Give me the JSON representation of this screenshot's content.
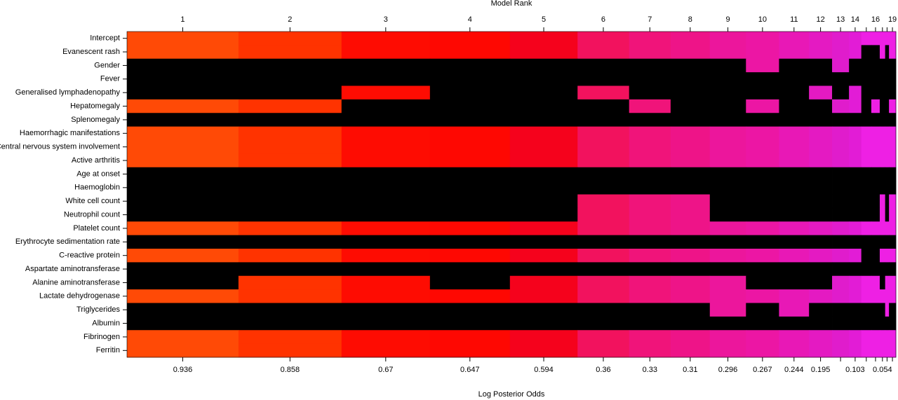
{
  "chart_data": {
    "type": "bma-image",
    "title": "Model Rank",
    "xlabel": "Log Posterior Odds",
    "model_ranks": [
      1,
      2,
      3,
      4,
      5,
      6,
      7,
      8,
      9,
      10,
      11,
      12,
      13,
      14,
      null,
      16,
      null,
      null,
      19
    ],
    "log_posterior_odds": [
      0.936,
      0.858,
      0.67,
      0.647,
      0.594,
      0.36,
      0.33,
      0.31,
      0.296,
      0.267,
      0.244,
      0.195,
      null,
      0.103,
      null,
      null,
      0.054,
      null,
      null
    ],
    "model_probs": [
      0.145,
      0.134,
      0.115,
      0.104,
      0.088,
      0.067,
      0.054,
      0.051,
      0.047,
      0.043,
      0.039,
      0.03,
      0.022,
      0.016,
      0.013,
      0.011,
      0.007,
      0.005,
      0.009
    ],
    "xlim": [
      0,
      1
    ],
    "model_colors": [
      "#ff4a06",
      "#ff3300",
      "#fe0c02",
      "#fe0802",
      "#f5021c",
      "#f2125e",
      "#f0147a",
      "#ee1488",
      "#ec169c",
      "#ec16a4",
      "#e818b6",
      "#e41ac2",
      "#e01ccc",
      "#e21cd6",
      "#ee20e4",
      "#ee20e4",
      "#ee20e4",
      "#ee20e4",
      "#ee20e4"
    ],
    "empty_color": "#000000",
    "variables": [
      "Intercept",
      "Evanescent rash",
      "Gender",
      "Fever",
      "Generalised lymphadenopathy",
      "Hepatomegaly",
      "Splenomegaly",
      "Haemorrhagic manifestations",
      "Central nervous system involvement",
      "Active arthritis",
      "Age at onset",
      "Haemoglobin",
      "White cell count",
      "Neutrophil count",
      "Platelet count",
      "Erythrocyte sedimentation rate",
      "C-reactive protein",
      "Aspartate aminotransferase",
      "Alanine aminotransferase",
      "Lactate dehydrogenase",
      "Triglycerides",
      "Albumin",
      "Fibrinogen",
      "Ferritin"
    ],
    "inclusion": [
      [
        1,
        1,
        1,
        1,
        1,
        1,
        1,
        1,
        1,
        1,
        1,
        1,
        1,
        1,
        1,
        1,
        1,
        1,
        1
      ],
      [
        1,
        1,
        1,
        1,
        1,
        1,
        1,
        1,
        1,
        1,
        1,
        1,
        1,
        1,
        0,
        0,
        1,
        0,
        1
      ],
      [
        0,
        0,
        0,
        0,
        0,
        0,
        0,
        0,
        0,
        1,
        0,
        0,
        1,
        0,
        0,
        0,
        0,
        0,
        0
      ],
      [
        0,
        0,
        0,
        0,
        0,
        0,
        0,
        0,
        0,
        0,
        0,
        0,
        0,
        0,
        0,
        0,
        0,
        0,
        0
      ],
      [
        0,
        0,
        1,
        0,
        0,
        1,
        0,
        0,
        0,
        0,
        0,
        1,
        0,
        1,
        0,
        0,
        0,
        0,
        0
      ],
      [
        1,
        1,
        0,
        0,
        0,
        0,
        1,
        0,
        0,
        1,
        0,
        0,
        1,
        1,
        0,
        1,
        0,
        0,
        1
      ],
      [
        0,
        0,
        0,
        0,
        0,
        0,
        0,
        0,
        0,
        0,
        0,
        0,
        0,
        0,
        0,
        0,
        0,
        0,
        0
      ],
      [
        1,
        1,
        1,
        1,
        1,
        1,
        1,
        1,
        1,
        1,
        1,
        1,
        1,
        1,
        1,
        1,
        1,
        1,
        1
      ],
      [
        1,
        1,
        1,
        1,
        1,
        1,
        1,
        1,
        1,
        1,
        1,
        1,
        1,
        1,
        1,
        1,
        1,
        1,
        1
      ],
      [
        1,
        1,
        1,
        1,
        1,
        1,
        1,
        1,
        1,
        1,
        1,
        1,
        1,
        1,
        1,
        1,
        1,
        1,
        1
      ],
      [
        0,
        0,
        0,
        0,
        0,
        0,
        0,
        0,
        0,
        0,
        0,
        0,
        0,
        0,
        0,
        0,
        0,
        0,
        0
      ],
      [
        0,
        0,
        0,
        0,
        0,
        0,
        0,
        0,
        0,
        0,
        0,
        0,
        0,
        0,
        0,
        0,
        0,
        0,
        0
      ],
      [
        0,
        0,
        0,
        0,
        0,
        1,
        1,
        1,
        0,
        0,
        0,
        0,
        0,
        0,
        0,
        0,
        1,
        0,
        1
      ],
      [
        0,
        0,
        0,
        0,
        0,
        1,
        1,
        1,
        0,
        0,
        0,
        0,
        0,
        0,
        0,
        0,
        1,
        0,
        1
      ],
      [
        1,
        1,
        1,
        1,
        1,
        1,
        1,
        1,
        1,
        1,
        1,
        1,
        1,
        1,
        1,
        1,
        1,
        1,
        1
      ],
      [
        0,
        0,
        0,
        0,
        0,
        0,
        0,
        0,
        0,
        0,
        0,
        0,
        0,
        0,
        0,
        0,
        0,
        0,
        0
      ],
      [
        1,
        1,
        1,
        1,
        1,
        1,
        1,
        1,
        1,
        1,
        1,
        1,
        1,
        1,
        0,
        0,
        1,
        1,
        1
      ],
      [
        0,
        0,
        0,
        0,
        0,
        0,
        0,
        0,
        0,
        0,
        0,
        0,
        0,
        0,
        0,
        0,
        0,
        0,
        0
      ],
      [
        0,
        1,
        1,
        0,
        1,
        1,
        1,
        1,
        1,
        0,
        0,
        0,
        1,
        1,
        1,
        1,
        0,
        1,
        1
      ],
      [
        1,
        1,
        1,
        1,
        1,
        1,
        1,
        1,
        1,
        1,
        1,
        1,
        1,
        1,
        1,
        1,
        1,
        1,
        1
      ],
      [
        0,
        0,
        0,
        0,
        0,
        0,
        0,
        0,
        1,
        0,
        1,
        0,
        0,
        0,
        0,
        0,
        0,
        1,
        0
      ],
      [
        0,
        0,
        0,
        0,
        0,
        0,
        0,
        0,
        0,
        0,
        0,
        0,
        0,
        0,
        0,
        0,
        0,
        0,
        0
      ],
      [
        1,
        1,
        1,
        1,
        1,
        1,
        1,
        1,
        1,
        1,
        1,
        1,
        1,
        1,
        1,
        1,
        1,
        1,
        1
      ],
      [
        1,
        1,
        1,
        1,
        1,
        1,
        1,
        1,
        1,
        1,
        1,
        1,
        1,
        1,
        1,
        1,
        1,
        1,
        1
      ]
    ]
  }
}
